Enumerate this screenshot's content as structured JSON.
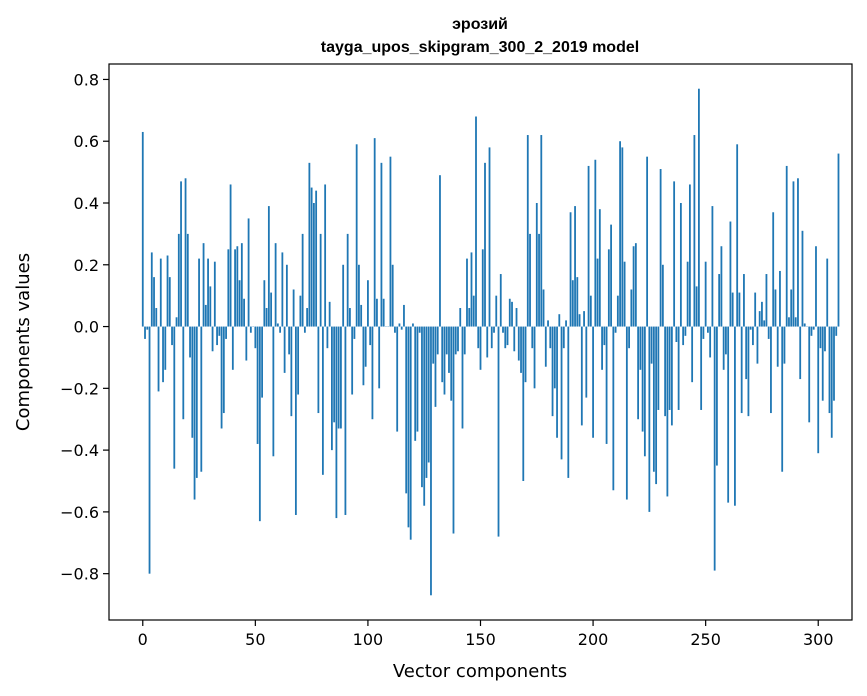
{
  "chart_data": {
    "type": "bar",
    "title_lines": [
      "эрозий",
      "tayga_upos_skipgram_300_2_2019 model"
    ],
    "xlabel": "Vector components",
    "ylabel": "Components values",
    "xlim": [
      -15,
      315
    ],
    "ylim": [
      -0.95,
      0.85
    ],
    "xticks": [
      0,
      50,
      100,
      150,
      200,
      250,
      300
    ],
    "yticks": [
      0.8,
      0.6,
      0.4,
      0.2,
      0.0,
      -0.2,
      -0.4,
      -0.6,
      -0.8
    ],
    "ytick_labels": [
      "0.8",
      "0.6",
      "0.4",
      "0.2",
      "0.0",
      "−0.2",
      "−0.4",
      "−0.6",
      "−0.8"
    ],
    "grid": false,
    "legend": "none",
    "bar_color": "#1f77b4",
    "series": [
      {
        "values": [
          0.63,
          -0.04,
          -0.01,
          -0.8,
          0.24,
          0.16,
          0.06,
          -0.21,
          0.22,
          -0.18,
          -0.14,
          0.23,
          0.16,
          -0.06,
          -0.46,
          0.03,
          0.3,
          0.47,
          -0.3,
          0.48,
          0.3,
          -0.1,
          -0.36,
          -0.56,
          -0.49,
          0.22,
          -0.47,
          0.27,
          0.07,
          0.22,
          0.13,
          -0.08,
          0.21,
          -0.06,
          -0.03,
          -0.33,
          -0.28,
          -0.04,
          0.25,
          0.46,
          -0.14,
          0.25,
          0.26,
          0.15,
          0.27,
          0.09,
          -0.11,
          0.35,
          -0.02,
          0.0,
          -0.07,
          -0.38,
          -0.63,
          -0.23,
          0.15,
          0.06,
          0.39,
          0.11,
          -0.42,
          0.27,
          0.01,
          -0.02,
          0.24,
          -0.15,
          0.2,
          -0.09,
          -0.29,
          0.12,
          -0.61,
          -0.22,
          0.1,
          0.3,
          -0.02,
          0.06,
          0.53,
          0.45,
          0.4,
          0.44,
          -0.28,
          0.3,
          -0.48,
          0.46,
          -0.07,
          0.08,
          -0.4,
          -0.31,
          -0.62,
          -0.33,
          -0.33,
          0.2,
          -0.61,
          0.3,
          0.06,
          -0.22,
          -0.04,
          0.59,
          0.2,
          0.07,
          -0.19,
          -0.13,
          0.15,
          -0.06,
          -0.3,
          0.61,
          0.09,
          -0.2,
          0.53,
          0.09,
          0.0,
          0.0,
          0.55,
          0.2,
          -0.02,
          -0.34,
          0.01,
          -0.01,
          0.07,
          -0.54,
          -0.65,
          -0.69,
          0.01,
          -0.37,
          -0.34,
          -0.02,
          -0.52,
          -0.58,
          -0.49,
          -0.44,
          -0.87,
          -0.12,
          -0.26,
          -0.09,
          0.49,
          -0.18,
          -0.22,
          -0.09,
          -0.15,
          -0.24,
          -0.67,
          -0.09,
          -0.08,
          0.06,
          -0.33,
          -0.09,
          0.22,
          0.06,
          0.24,
          0.1,
          0.68,
          -0.07,
          -0.14,
          0.25,
          0.53,
          -0.1,
          0.58,
          -0.07,
          -0.02,
          0.1,
          -0.68,
          0.17,
          -0.02,
          -0.07,
          -0.06,
          0.09,
          0.08,
          -0.08,
          0.06,
          -0.11,
          -0.15,
          -0.5,
          -0.18,
          0.62,
          0.3,
          -0.07,
          -0.2,
          0.4,
          0.3,
          0.62,
          0.12,
          -0.13,
          0.02,
          -0.07,
          -0.29,
          -0.2,
          -0.36,
          0.04,
          -0.43,
          -0.07,
          0.02,
          -0.49,
          0.37,
          0.15,
          0.39,
          0.16,
          0.04,
          -0.32,
          0.05,
          -0.23,
          0.52,
          0.1,
          -0.36,
          0.54,
          0.22,
          0.38,
          -0.14,
          -0.06,
          -0.38,
          0.25,
          0.33,
          -0.53,
          -0.02,
          0.1,
          0.6,
          0.58,
          0.21,
          -0.56,
          -0.07,
          0.12,
          0.26,
          0.27,
          -0.3,
          -0.14,
          -0.34,
          -0.42,
          0.55,
          -0.6,
          -0.12,
          -0.47,
          -0.51,
          -0.27,
          0.51,
          0.2,
          -0.29,
          -0.55,
          -0.27,
          -0.32,
          0.47,
          -0.05,
          -0.27,
          0.4,
          -0.06,
          -0.03,
          0.21,
          0.46,
          -0.18,
          0.62,
          0.13,
          0.77,
          -0.27,
          -0.04,
          0.21,
          -0.02,
          -0.1,
          0.39,
          -0.79,
          -0.45,
          0.17,
          0.26,
          -0.14,
          -0.09,
          -0.57,
          0.34,
          0.11,
          -0.58,
          0.59,
          0.11,
          -0.28,
          0.17,
          -0.17,
          -0.29,
          -0.01,
          -0.06,
          0.11,
          -0.12,
          0.05,
          0.08,
          0.02,
          0.17,
          -0.04,
          -0.28,
          0.37,
          0.12,
          -0.13,
          0.18,
          -0.47,
          -0.12,
          0.52,
          0.03,
          0.12,
          0.47,
          0.03,
          0.48,
          -0.17,
          0.31,
          0.01,
          0.0,
          -0.31,
          -0.03,
          -0.01,
          0.26,
          -0.41,
          -0.07,
          -0.24,
          -0.08,
          0.22,
          -0.28,
          -0.36,
          -0.24,
          -0.03,
          0.56
        ]
      }
    ]
  }
}
